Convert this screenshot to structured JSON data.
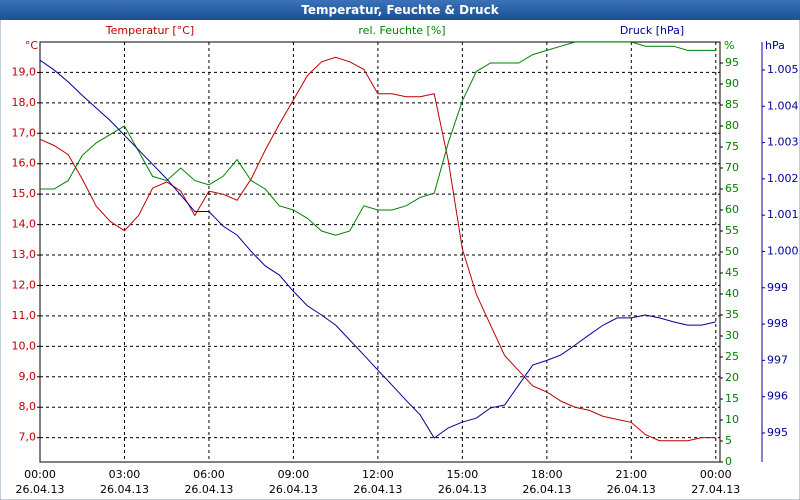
{
  "chart_data": {
    "type": "line",
    "title": "Temperatur, Feuchte & Druck",
    "grid": true,
    "x": [
      0,
      0.5,
      1,
      1.5,
      2,
      2.5,
      3,
      3.5,
      4,
      4.5,
      5,
      5.5,
      6,
      6.5,
      7,
      7.5,
      8,
      8.5,
      9,
      9.5,
      10,
      10.5,
      11,
      11.5,
      12,
      12.5,
      13,
      13.5,
      14,
      14.5,
      15,
      15.5,
      16,
      16.5,
      17,
      17.5,
      18,
      18.5,
      19,
      19.5,
      20,
      20.5,
      21,
      21.5,
      22,
      22.5,
      23,
      23.5,
      24
    ],
    "xlim": [
      0,
      24.15
    ],
    "xticks": [
      {
        "value": 0,
        "label": "00:00",
        "date": "26.04.13"
      },
      {
        "value": 3,
        "label": "03:00",
        "date": "26.04.13"
      },
      {
        "value": 6,
        "label": "06:00",
        "date": "26.04.13"
      },
      {
        "value": 9,
        "label": "09:00",
        "date": "26.04.13"
      },
      {
        "value": 12,
        "label": "12:00",
        "date": "26.04.13"
      },
      {
        "value": 15,
        "label": "15:00",
        "date": "26.04.13"
      },
      {
        "value": 18,
        "label": "18:00",
        "date": "26.04.13"
      },
      {
        "value": 21,
        "label": "21:00",
        "date": "26.04.13"
      },
      {
        "value": 24,
        "label": "00:00",
        "date": "27.04.13"
      }
    ],
    "y_unit": "°C",
    "ylim": [
      6.2,
      20.0
    ],
    "yticks": [
      {
        "value": 7,
        "label": "7,0"
      },
      {
        "value": 8,
        "label": "8,0"
      },
      {
        "value": 9,
        "label": "9,0"
      },
      {
        "value": 10,
        "label": "10,0"
      },
      {
        "value": 11,
        "label": "11,0"
      },
      {
        "value": 12,
        "label": "12,0"
      },
      {
        "value": 13,
        "label": "13,0"
      },
      {
        "value": 14,
        "label": "14,0"
      },
      {
        "value": 15,
        "label": "15,0"
      },
      {
        "value": 16,
        "label": "16,0"
      },
      {
        "value": 17,
        "label": "17,0"
      },
      {
        "value": 18,
        "label": "18,0"
      },
      {
        "value": 19,
        "label": "19,0"
      }
    ],
    "y2_unit": "%",
    "y2lim": [
      0,
      100
    ],
    "y2ticks": [
      0,
      5,
      10,
      15,
      20,
      25,
      30,
      35,
      40,
      45,
      50,
      55,
      60,
      65,
      70,
      75,
      80,
      85,
      90,
      95
    ],
    "y3_unit": "hPa",
    "y3lim": [
      994.2,
      1005.77
    ],
    "y3ticks": [
      995,
      996,
      997,
      998,
      999,
      {
        "value": 1000,
        "label": "1.000"
      },
      {
        "value": 1001,
        "label": "1.001"
      },
      {
        "value": 1002,
        "label": "1.002"
      },
      {
        "value": 1003,
        "label": "1.003"
      },
      {
        "value": 1004,
        "label": "1.004"
      },
      {
        "value": 1005,
        "label": "1.005"
      }
    ],
    "series": [
      {
        "name": "Temperatur [°C]",
        "color": "#c00000",
        "axis": "y",
        "values": [
          16.8,
          16.6,
          16.3,
          15.5,
          14.6,
          14.1,
          13.8,
          14.3,
          15.2,
          15.4,
          15.1,
          14.3,
          15.1,
          15.0,
          14.8,
          15.5,
          16.45,
          17.3,
          18.1,
          18.9,
          19.35,
          19.5,
          19.35,
          19.1,
          18.3,
          18.3,
          18.2,
          18.2,
          18.3,
          16.1,
          13.2,
          11.7,
          10.7,
          9.7,
          9.2,
          8.7,
          8.5,
          8.2,
          8.0,
          7.9,
          7.7,
          7.6,
          7.5,
          7.1,
          6.9,
          6.9,
          6.9,
          7.0,
          7.0
        ]
      },
      {
        "name": "rel. Feuchte [%]",
        "color": "#008000",
        "axis": "y2",
        "values": [
          65,
          65,
          67,
          73,
          76,
          78,
          80,
          74,
          68,
          67,
          70,
          67,
          66,
          68,
          72,
          67,
          65,
          61,
          60,
          58,
          55,
          54,
          55,
          61,
          60,
          60,
          61,
          63,
          64,
          76,
          86,
          93,
          95,
          95,
          95,
          97,
          98,
          99,
          100,
          100,
          100,
          100,
          100,
          99,
          99,
          99,
          98,
          98,
          98
        ]
      },
      {
        "name": "Druck [hPa]",
        "color": "#000099",
        "axis": "y3",
        "values": [
          1005.27,
          1005.0,
          1004.67,
          1004.3,
          1003.95,
          1003.6,
          1003.2,
          1002.8,
          1002.4,
          1002.0,
          1001.55,
          1001.1,
          1001.1,
          1000.7,
          1000.45,
          1000.0,
          999.6,
          999.35,
          998.9,
          998.5,
          998.25,
          997.97,
          997.56,
          997.15,
          996.73,
          996.32,
          995.9,
          995.5,
          994.86,
          995.14,
          995.3,
          995.41,
          995.69,
          995.77,
          996.32,
          996.87,
          997.0,
          997.15,
          997.42,
          997.7,
          997.97,
          998.17,
          998.17,
          998.25,
          998.17,
          998.06,
          997.97,
          997.97,
          998.06
        ]
      }
    ]
  }
}
